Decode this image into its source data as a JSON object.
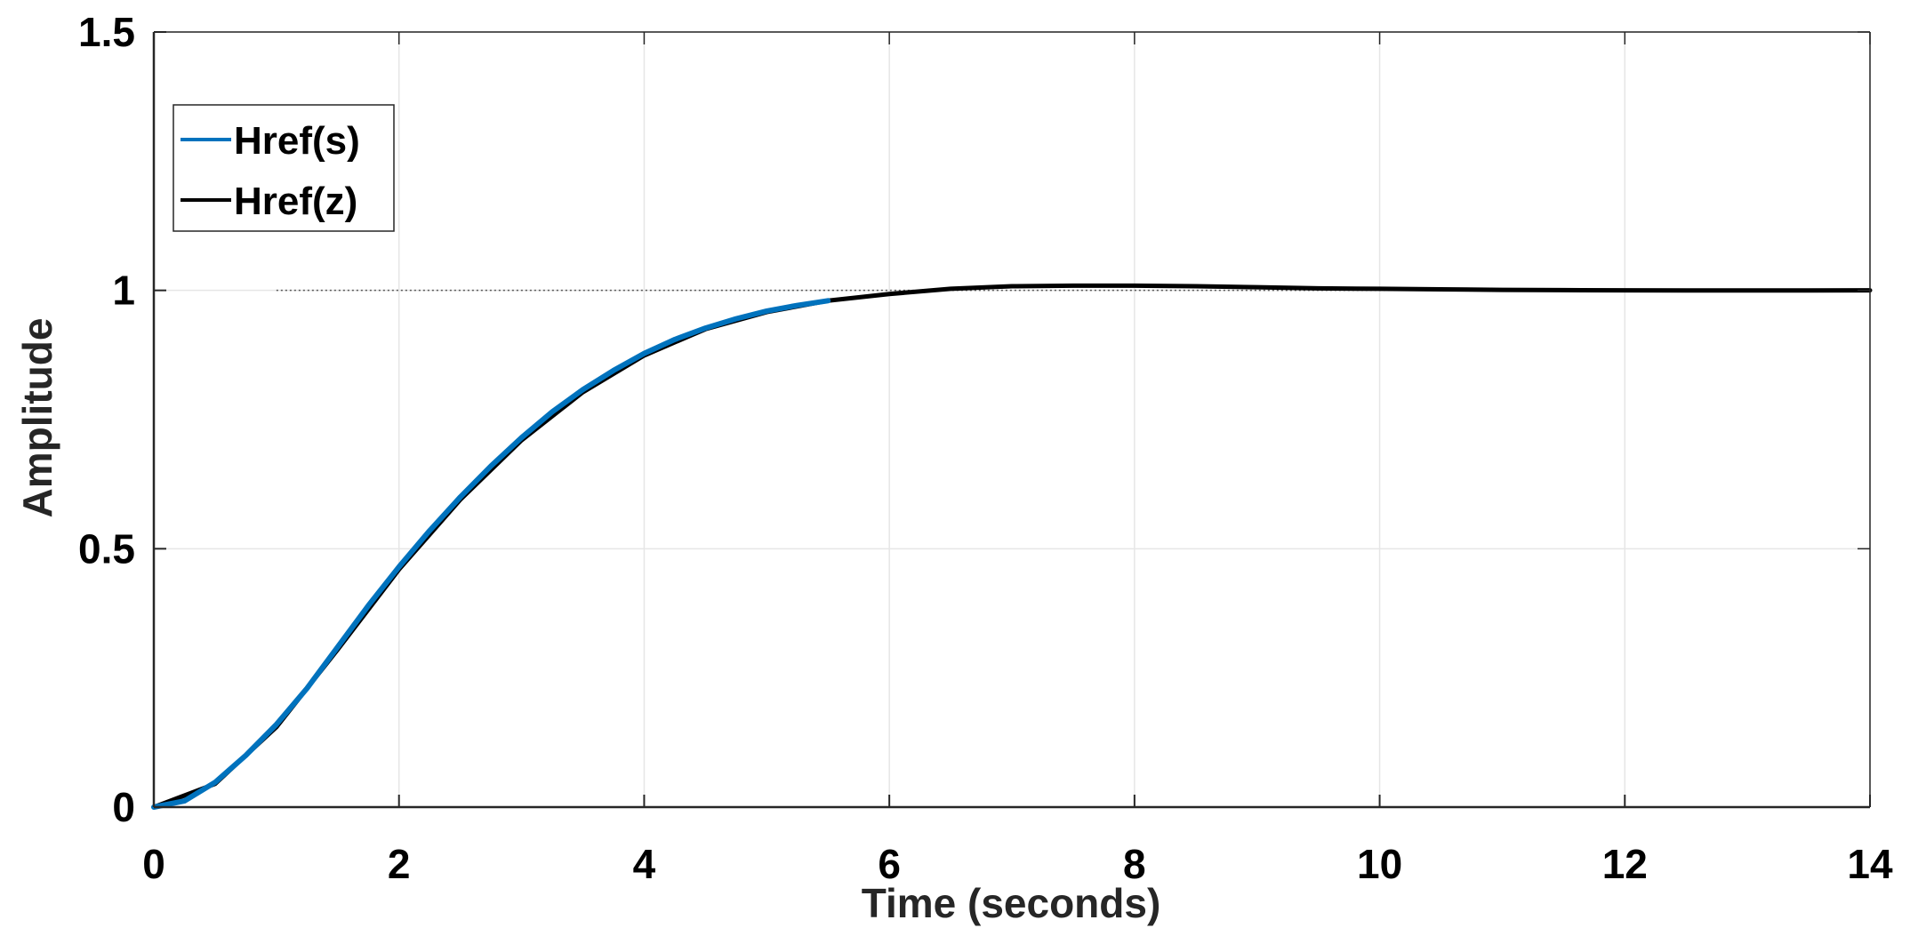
{
  "chart_data": {
    "type": "line",
    "title": "",
    "xlabel": "Time (seconds)",
    "ylabel": "Amplitude",
    "xlim": [
      0,
      14
    ],
    "ylim": [
      0,
      1.5
    ],
    "x_ticks": [
      "0",
      "2",
      "4",
      "6",
      "8",
      "10",
      "12",
      "14"
    ],
    "y_ticks": [
      "0",
      "0.5",
      "1",
      "1.5"
    ],
    "x_tick_values": [
      0,
      2,
      4,
      6,
      8,
      10,
      12,
      14
    ],
    "y_tick_values": [
      0,
      0.5,
      1,
      1.5
    ],
    "grid": true,
    "legend_position": "top-left",
    "reference_line": {
      "y": 1,
      "x_start": 1,
      "x_end": 14,
      "style": "dotted"
    },
    "series": [
      {
        "name": "Href(s)",
        "color": "#0072BD",
        "x": [
          0,
          0.25,
          0.5,
          0.75,
          1,
          1.25,
          1.5,
          1.75,
          2,
          2.25,
          2.5,
          2.75,
          3,
          3.25,
          3.5,
          3.75,
          4,
          4.25,
          4.5,
          4.75,
          5,
          5.25,
          5.5
        ],
        "y": [
          0,
          0.012,
          0.048,
          0.1,
          0.16,
          0.23,
          0.31,
          0.39,
          0.465,
          0.535,
          0.6,
          0.66,
          0.715,
          0.765,
          0.808,
          0.845,
          0.878,
          0.905,
          0.927,
          0.945,
          0.96,
          0.971,
          0.98
        ]
      },
      {
        "name": "Href(z)",
        "color": "#000000",
        "x": [
          0,
          0.5,
          1,
          1.5,
          2,
          2.5,
          3,
          3.5,
          4,
          4.5,
          5,
          5.5,
          6,
          6.5,
          7,
          7.5,
          8,
          8.5,
          9,
          9.5,
          10,
          10.5,
          11,
          11.5,
          12,
          12.5,
          13,
          13.5,
          14
        ],
        "y": [
          0,
          0.045,
          0.155,
          0.305,
          0.46,
          0.595,
          0.71,
          0.803,
          0.874,
          0.925,
          0.958,
          0.98,
          0.993,
          1.003,
          1.008,
          1.009,
          1.009,
          1.008,
          1.006,
          1.004,
          1.003,
          1.002,
          1.001,
          1.0005,
          1.0,
          0.9998,
          0.9998,
          0.9999,
          1.0
        ]
      }
    ]
  }
}
